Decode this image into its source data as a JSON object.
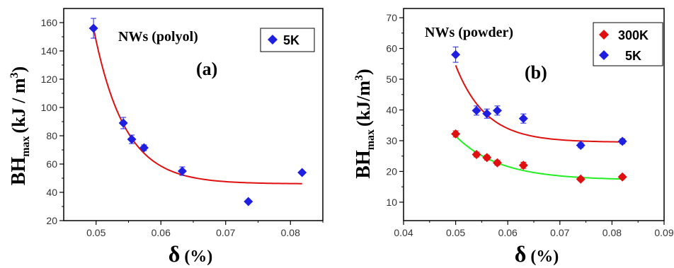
{
  "chart_data": [
    {
      "type": "scatter",
      "title": "NWs (polyol)",
      "panel_label": "(a)",
      "ylabel_main": "BH",
      "ylabel_sub": "max",
      "ylabel_units": "(kJ / m",
      "ylabel_sup": "3",
      "ylabel_close": ")",
      "xlabel_main": "δ",
      "xlabel_units": "(%)",
      "xlim": [
        0.045,
        0.085
      ],
      "ylim": [
        20,
        170
      ],
      "xticks": [
        "0.05",
        "0.06",
        "0.07",
        "0.08"
      ],
      "xtick_values": [
        0.05,
        0.06,
        0.07,
        0.08
      ],
      "yticks": [
        "20",
        "40",
        "60",
        "80",
        "100",
        "120",
        "140",
        "160"
      ],
      "ytick_values": [
        20,
        40,
        60,
        80,
        100,
        120,
        140,
        160
      ],
      "legend_position": "top-right",
      "series": [
        {
          "name": "5K",
          "marker": "diamond",
          "color": "#1f1fe0",
          "fit_color": "#e01010",
          "x": [
            0.0496,
            0.0542,
            0.0555,
            0.0574,
            0.0633,
            0.0735,
            0.0818
          ],
          "y": [
            156,
            89,
            77.5,
            71.5,
            55,
            33.5,
            54
          ],
          "yerr": [
            7,
            4,
            3,
            2,
            3,
            1,
            1
          ],
          "fit": {
            "asymptote": 46,
            "amplitude": 110,
            "x0": 0.0496,
            "tau": 0.0048
          }
        }
      ]
    },
    {
      "type": "scatter",
      "title": "NWs (powder)",
      "panel_label": "(b)",
      "ylabel_main": "BH",
      "ylabel_sub": "max",
      "ylabel_units": "(kJ/m",
      "ylabel_sup": "3",
      "ylabel_close": ")",
      "xlabel_main": "δ",
      "xlabel_units": "(%)",
      "xlim": [
        0.04,
        0.09
      ],
      "ylim": [
        4,
        73
      ],
      "xticks": [
        "0.04",
        "0.05",
        "0.06",
        "0.07",
        "0.08",
        "0.09"
      ],
      "xtick_values": [
        0.04,
        0.05,
        0.06,
        0.07,
        0.08,
        0.09
      ],
      "yticks": [
        "10",
        "20",
        "30",
        "40",
        "50",
        "60",
        "70"
      ],
      "ytick_values": [
        10,
        20,
        30,
        40,
        50,
        60,
        70
      ],
      "legend_position": "top-right",
      "series": [
        {
          "name": "300K",
          "marker": "diamond",
          "color": "#e01010",
          "fit_color": "#22ee22",
          "x": [
            0.05,
            0.054,
            0.056,
            0.058,
            0.063,
            0.074,
            0.082
          ],
          "y": [
            32.2,
            25.5,
            24.5,
            22.8,
            22,
            17.5,
            18.2
          ],
          "yerr": [
            1,
            0.8,
            0.8,
            0.8,
            1,
            0.6,
            0.6
          ],
          "fit": {
            "asymptote": 17.2,
            "amplitude": 14.3,
            "x0": 0.05,
            "tau": 0.0085
          }
        },
        {
          "name": "5K",
          "marker": "diamond",
          "color": "#1f1fe0",
          "fit_color": "#e01010",
          "x": [
            0.05,
            0.054,
            0.056,
            0.058,
            0.063,
            0.074,
            0.082
          ],
          "y": [
            58,
            39.8,
            38.8,
            39.8,
            37.2,
            28.5,
            29.8
          ],
          "yerr": [
            2.5,
            1.5,
            1.5,
            1.5,
            1.5,
            0.8,
            0.8
          ],
          "fit": {
            "asymptote": 29.5,
            "amplitude": 25,
            "x0": 0.05,
            "tau": 0.0058
          }
        }
      ]
    }
  ]
}
